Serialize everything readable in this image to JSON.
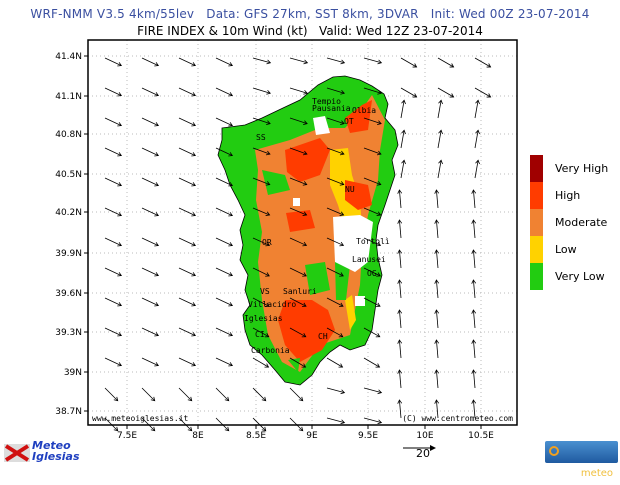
{
  "header": {
    "title": "WRF-NMM V3.5 4km/55lev   Data: GFS 27km, SST 8km, 3DVAR   Init: Wed 00Z 23-07-2014",
    "subtitle": "FIRE INDEX & 10m Wind (kt)   Valid: Wed 12Z 23-07-2014"
  },
  "map": {
    "lat_labels": [
      "41.4N",
      "41.1N",
      "40.8N",
      "40.5N",
      "40.2N",
      "39.9N",
      "39.6N",
      "39.3N",
      "39N",
      "38.7N"
    ],
    "lon_labels": [
      "7.5E",
      "8E",
      "8.5E",
      "9E",
      "9.5E",
      "10E",
      "10.5E"
    ],
    "credit_left": "www.meteoiglesias.it",
    "credit_right": "(C) www.centrometeo.com",
    "cities": [
      "Tempio",
      "Pausania",
      "Olbia",
      "OT",
      "SS",
      "NU",
      "OR",
      "Tortolì",
      "Lanusei",
      "OG",
      "VS",
      "Sanluri",
      "Villacidro",
      "Iglesias",
      "CI",
      "CH",
      "Carbonia"
    ]
  },
  "legend": {
    "items": [
      {
        "label": "Very High",
        "color": "#a00000"
      },
      {
        "label": "High",
        "color": "#ff3c00"
      },
      {
        "label": "Moderate",
        "color": "#f08232"
      },
      {
        "label": "Low",
        "color": "#ffd200"
      },
      {
        "label": "Very Low",
        "color": "#22cc11"
      }
    ]
  },
  "wind_scale": {
    "value": "20"
  },
  "logos": {
    "left": "Meteo Iglesias",
    "right": "centrometeo"
  }
}
